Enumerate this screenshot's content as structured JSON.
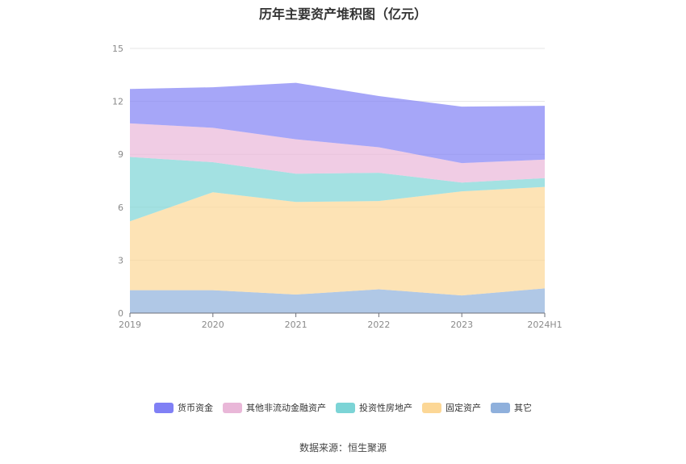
{
  "title": "历年主要资产堆积图（亿元）",
  "source": "数据来源：恒生聚源",
  "chart_data": {
    "type": "area",
    "stacked": true,
    "title": "历年主要资产堆积图（亿元）",
    "categories": [
      "2019",
      "2020",
      "2021",
      "2022",
      "2023",
      "2024H1"
    ],
    "ylim": [
      0,
      15
    ],
    "yticks": [
      0,
      3,
      6,
      9,
      12,
      15
    ],
    "grid": true,
    "legend_position": "bottom",
    "series": [
      {
        "name": "其它",
        "color": "#8fb0dc",
        "values": [
          1.3,
          1.3,
          1.05,
          1.35,
          1.0,
          1.4
        ]
      },
      {
        "name": "固定资产",
        "color": "#fcd796",
        "values": [
          3.9,
          5.55,
          5.25,
          5.0,
          5.9,
          5.75
        ]
      },
      {
        "name": "投资性房地产",
        "color": "#7cd4d6",
        "values": [
          3.65,
          1.7,
          1.6,
          1.6,
          0.5,
          0.5
        ]
      },
      {
        "name": "其他非流动金融资产",
        "color": "#e9b7d8",
        "values": [
          1.9,
          1.95,
          1.95,
          1.45,
          1.1,
          1.05
        ]
      },
      {
        "name": "货币资金",
        "color": "#8080f5",
        "values": [
          1.95,
          2.3,
          3.2,
          2.9,
          3.2,
          3.05
        ]
      }
    ]
  }
}
